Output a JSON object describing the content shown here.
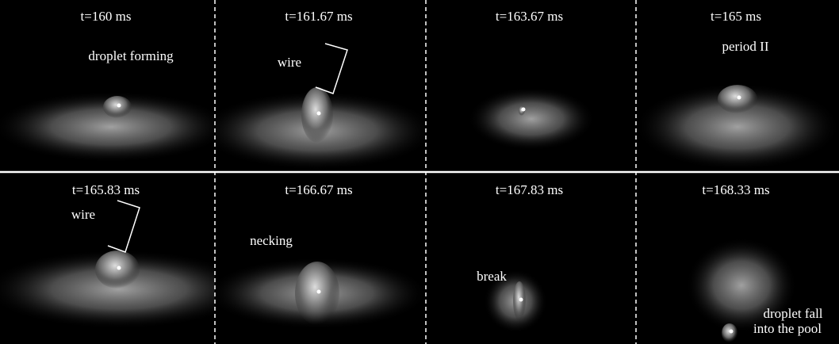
{
  "panels": [
    {
      "time": "t=160 ms",
      "notes": [
        "droplet forming"
      ]
    },
    {
      "time": "t=161.67 ms",
      "notes": [
        "wire"
      ]
    },
    {
      "time": "t=163.67 ms",
      "notes": []
    },
    {
      "time": "t=165 ms",
      "notes": [
        "period II"
      ]
    },
    {
      "time": "t=165.83 ms",
      "notes": [
        "wire"
      ]
    },
    {
      "time": "t=166.67 ms",
      "notes": [
        "necking"
      ]
    },
    {
      "time": "t=167.83 ms",
      "notes": [
        "break"
      ]
    },
    {
      "time": "t=168.33 ms",
      "notes": [
        "droplet fall",
        "into the pool"
      ]
    }
  ]
}
